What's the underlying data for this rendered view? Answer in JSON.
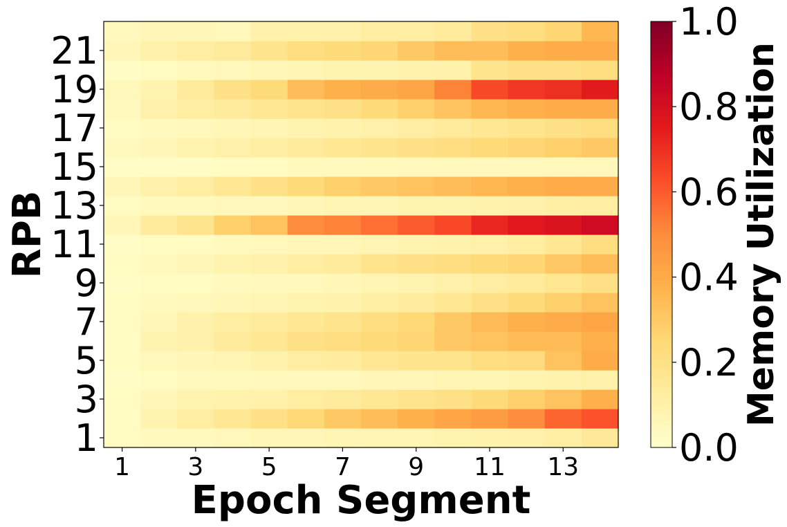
{
  "chart_data": {
    "type": "heatmap",
    "xlabel": "Epoch Segment",
    "ylabel": "RPB",
    "colorbar_label": "Memory Utilization",
    "colormap": "YlOrRd",
    "vmin": 0.0,
    "vmax": 1.0,
    "x": [
      1,
      2,
      3,
      4,
      5,
      6,
      7,
      8,
      9,
      10,
      11,
      12,
      13,
      14
    ],
    "y": [
      1,
      2,
      3,
      4,
      5,
      6,
      7,
      8,
      9,
      10,
      11,
      12,
      13,
      14,
      15,
      16,
      17,
      18,
      19,
      20,
      21,
      22
    ],
    "x_ticks": [
      "1",
      "3",
      "5",
      "7",
      "9",
      "11",
      "13"
    ],
    "y_ticks": [
      "1",
      "3",
      "5",
      "7",
      "9",
      "11",
      "13",
      "15",
      "17",
      "19",
      "21"
    ],
    "colorbar_ticks": [
      "0.0",
      "0.2",
      "0.4",
      "0.6",
      "0.8",
      "1.0"
    ],
    "values": [
      [
        0.03,
        0.04,
        0.04,
        0.05,
        0.06,
        0.06,
        0.07,
        0.07,
        0.07,
        0.08,
        0.09,
        0.1,
        0.11,
        0.15
      ],
      [
        0.03,
        0.08,
        0.12,
        0.16,
        0.2,
        0.25,
        0.3,
        0.34,
        0.38,
        0.42,
        0.45,
        0.5,
        0.58,
        0.62
      ],
      [
        0.03,
        0.06,
        0.08,
        0.09,
        0.1,
        0.12,
        0.14,
        0.16,
        0.18,
        0.2,
        0.24,
        0.28,
        0.32,
        0.38
      ],
      [
        0.02,
        0.03,
        0.04,
        0.04,
        0.05,
        0.05,
        0.05,
        0.06,
        0.06,
        0.07,
        0.07,
        0.08,
        0.09,
        0.1
      ],
      [
        0.03,
        0.05,
        0.06,
        0.07,
        0.09,
        0.12,
        0.13,
        0.16,
        0.18,
        0.18,
        0.22,
        0.23,
        0.32,
        0.4
      ],
      [
        0.03,
        0.08,
        0.1,
        0.14,
        0.16,
        0.2,
        0.22,
        0.24,
        0.26,
        0.3,
        0.32,
        0.35,
        0.35,
        0.38
      ],
      [
        0.03,
        0.06,
        0.1,
        0.12,
        0.14,
        0.16,
        0.18,
        0.22,
        0.25,
        0.3,
        0.35,
        0.38,
        0.4,
        0.42
      ],
      [
        0.03,
        0.04,
        0.05,
        0.06,
        0.07,
        0.08,
        0.09,
        0.11,
        0.13,
        0.16,
        0.2,
        0.24,
        0.28,
        0.32
      ],
      [
        0.02,
        0.03,
        0.03,
        0.04,
        0.05,
        0.05,
        0.06,
        0.07,
        0.08,
        0.1,
        0.12,
        0.14,
        0.17,
        0.2
      ],
      [
        0.03,
        0.04,
        0.06,
        0.08,
        0.1,
        0.12,
        0.14,
        0.18,
        0.2,
        0.22,
        0.24,
        0.26,
        0.3,
        0.34
      ],
      [
        0.02,
        0.03,
        0.03,
        0.04,
        0.05,
        0.06,
        0.06,
        0.07,
        0.08,
        0.09,
        0.1,
        0.12,
        0.16,
        0.22
      ],
      [
        0.06,
        0.14,
        0.18,
        0.28,
        0.32,
        0.5,
        0.52,
        0.56,
        0.6,
        0.64,
        0.72,
        0.76,
        0.78,
        0.82
      ],
      [
        0.03,
        0.04,
        0.04,
        0.05,
        0.05,
        0.06,
        0.07,
        0.07,
        0.08,
        0.08,
        0.09,
        0.1,
        0.11,
        0.12
      ],
      [
        0.06,
        0.1,
        0.12,
        0.16,
        0.2,
        0.24,
        0.28,
        0.3,
        0.32,
        0.34,
        0.36,
        0.38,
        0.4,
        0.4
      ],
      [
        0.02,
        0.02,
        0.02,
        0.03,
        0.03,
        0.04,
        0.04,
        0.04,
        0.05,
        0.05,
        0.05,
        0.05,
        0.05,
        0.05
      ],
      [
        0.04,
        0.06,
        0.08,
        0.1,
        0.12,
        0.14,
        0.16,
        0.18,
        0.2,
        0.22,
        0.24,
        0.26,
        0.28,
        0.3
      ],
      [
        0.03,
        0.04,
        0.05,
        0.06,
        0.07,
        0.08,
        0.09,
        0.1,
        0.12,
        0.14,
        0.16,
        0.18,
        0.2,
        0.22
      ],
      [
        0.04,
        0.1,
        0.12,
        0.14,
        0.16,
        0.18,
        0.2,
        0.24,
        0.28,
        0.32,
        0.36,
        0.38,
        0.4,
        0.4
      ],
      [
        0.05,
        0.08,
        0.14,
        0.2,
        0.24,
        0.34,
        0.38,
        0.4,
        0.42,
        0.52,
        0.64,
        0.68,
        0.7,
        0.75
      ],
      [
        0.02,
        0.03,
        0.04,
        0.05,
        0.06,
        0.07,
        0.08,
        0.08,
        0.09,
        0.1,
        0.18,
        0.2,
        0.2,
        0.22
      ],
      [
        0.06,
        0.1,
        0.12,
        0.14,
        0.18,
        0.22,
        0.24,
        0.26,
        0.3,
        0.34,
        0.34,
        0.38,
        0.4,
        0.4
      ],
      [
        0.04,
        0.06,
        0.06,
        0.05,
        0.1,
        0.1,
        0.1,
        0.12,
        0.12,
        0.14,
        0.2,
        0.22,
        0.26,
        0.36
      ]
    ]
  }
}
